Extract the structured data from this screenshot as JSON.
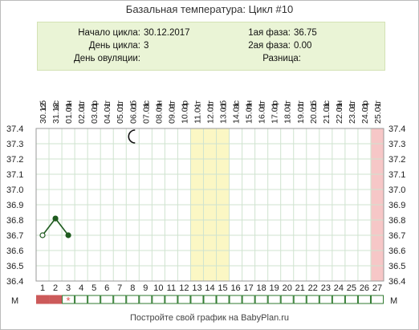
{
  "title": "Базальная температура: Цикл #10",
  "info": {
    "cycle_start_label": "Начало цикла:",
    "cycle_start_value": "30.12.2017",
    "cycle_day_label": "День цикла:",
    "cycle_day_value": "3",
    "ovulation_day_label": "День овуляции:",
    "ovulation_day_value": "",
    "phase1_label": "1ая фаза:",
    "phase1_value": "36.75",
    "phase2_label": "2ая фаза:",
    "phase2_value": "0.00",
    "difference_label": "Разница:",
    "difference_value": ""
  },
  "chart_data": {
    "type": "line",
    "ylim": [
      36.4,
      37.4
    ],
    "y_ticks": [
      "37.4",
      "37.3",
      "37.2",
      "37.1",
      "37.0",
      "36.9",
      "36.8",
      "36.7",
      "36.6",
      "36.5",
      "36.4"
    ],
    "dates": [
      {
        "weekday": "сб",
        "date": "30.12"
      },
      {
        "weekday": "вс",
        "date": "31.12"
      },
      {
        "weekday": "пн",
        "date": "01.01"
      },
      {
        "weekday": "вт",
        "date": "02.01"
      },
      {
        "weekday": "ср",
        "date": "03.01"
      },
      {
        "weekday": "чт",
        "date": "04.01"
      },
      {
        "weekday": "пт",
        "date": "05.01"
      },
      {
        "weekday": "сб",
        "date": "06.01"
      },
      {
        "weekday": "вс",
        "date": "07.01"
      },
      {
        "weekday": "пн",
        "date": "08.01"
      },
      {
        "weekday": "вт",
        "date": "09.01"
      },
      {
        "weekday": "ср",
        "date": "10.01"
      },
      {
        "weekday": "чт",
        "date": "11.01"
      },
      {
        "weekday": "пт",
        "date": "12.01"
      },
      {
        "weekday": "сб",
        "date": "13.01"
      },
      {
        "weekday": "вс",
        "date": "14.01"
      },
      {
        "weekday": "пн",
        "date": "15.01"
      },
      {
        "weekday": "вт",
        "date": "16.01"
      },
      {
        "weekday": "ср",
        "date": "17.01"
      },
      {
        "weekday": "чт",
        "date": "18.01"
      },
      {
        "weekday": "пт",
        "date": "19.01"
      },
      {
        "weekday": "сб",
        "date": "20.01"
      },
      {
        "weekday": "вс",
        "date": "21.01"
      },
      {
        "weekday": "пн",
        "date": "22.01"
      },
      {
        "weekday": "вт",
        "date": "23.01"
      },
      {
        "weekday": "ср",
        "date": "24.01"
      },
      {
        "weekday": "чт",
        "date": "25.01"
      }
    ],
    "day_labels": [
      "1",
      "2",
      "3",
      "4",
      "5",
      "6",
      "7",
      "8",
      "9",
      "10",
      "11",
      "12",
      "13",
      "14",
      "15",
      "16",
      "17",
      "18",
      "19",
      "20",
      "21",
      "22",
      "23",
      "24",
      "25",
      "26",
      "27"
    ],
    "series": [
      {
        "points": [
          {
            "day": 1,
            "value": 36.7,
            "marker": "open"
          },
          {
            "day": 2,
            "value": 36.81,
            "marker": "filled"
          },
          {
            "day": 3,
            "value": 36.7,
            "marker": "filled"
          }
        ]
      }
    ],
    "fertile_days": [
      13,
      14,
      15
    ],
    "highlight_days": [
      27
    ],
    "moon_day": 8,
    "m_label": "М",
    "menstruation_days": [
      1,
      2
    ],
    "star_day": 3,
    "star_symbol": "*",
    "colors": {
      "fertile": "#fbf7c4",
      "fertile_border": "#ece6a0",
      "highlight": "#f6c7c7",
      "menstruation": "#cc5a5a",
      "line": "#1f5b1f",
      "grid": "#cfe3cf",
      "m_box_border": "#2f7a2f",
      "star": "#e05050"
    }
  },
  "footer": "Постройте свой график на BabyPlan.ru"
}
